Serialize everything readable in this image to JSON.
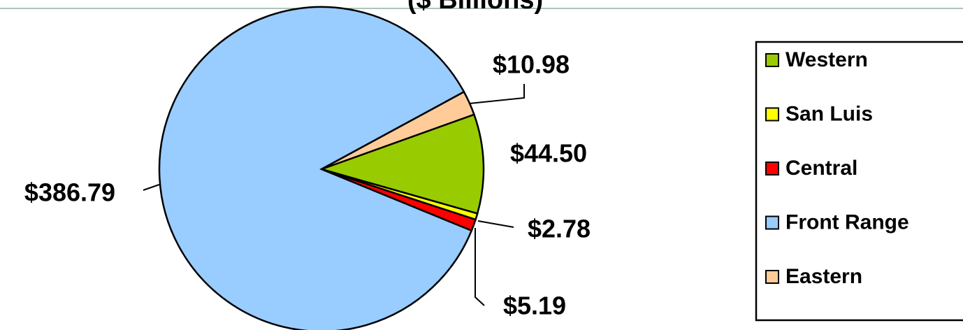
{
  "chart_data": {
    "type": "pie",
    "title": "($ Billions)",
    "categories": [
      "Western",
      "San Luis",
      "Central",
      "Front Range",
      "Eastern"
    ],
    "values": [
      44.5,
      2.78,
      5.19,
      386.79,
      10.98
    ],
    "value_labels": [
      "$44.50",
      "$2.78",
      "$5.19",
      "$386.79",
      "$10.98"
    ],
    "colors": [
      "#99cc00",
      "#ffff00",
      "#ff0000",
      "#99ccff",
      "#ffcc99"
    ],
    "legend": "right"
  }
}
